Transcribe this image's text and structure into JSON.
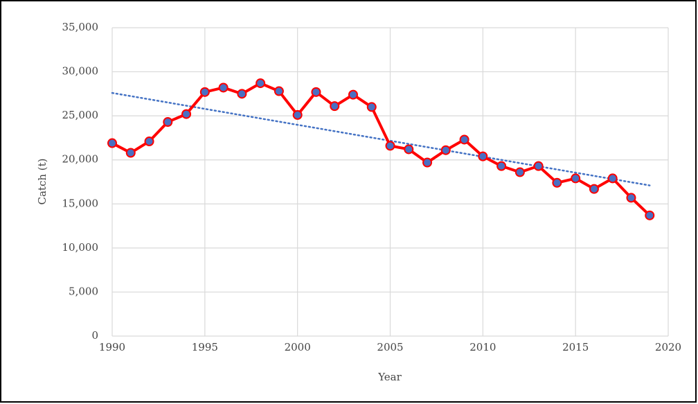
{
  "chart_data": {
    "type": "line",
    "x_label": "Year",
    "y_label": "Catch (t)",
    "x": [
      1990,
      1991,
      1992,
      1993,
      1994,
      1995,
      1996,
      1997,
      1998,
      1999,
      2000,
      2001,
      2002,
      2003,
      2004,
      2005,
      2006,
      2007,
      2008,
      2009,
      2010,
      2011,
      2012,
      2013,
      2014,
      2015,
      2016,
      2017,
      2018,
      2019
    ],
    "series": [
      {
        "color": "#ff0000",
        "marker_color": "#4a6fc2",
        "values": [
          21900,
          20800,
          22100,
          24300,
          25200,
          27700,
          28200,
          27500,
          28700,
          27800,
          25100,
          27700,
          26100,
          27400,
          26000,
          21600,
          21200,
          19700,
          21100,
          22300,
          20400,
          19300,
          18600,
          19300,
          17400,
          17900,
          16700,
          17900,
          15700,
          13700
        ]
      }
    ],
    "trendline": {
      "x": [
        1990,
        2019
      ],
      "values": [
        27600,
        17100
      ],
      "color": "#4472c4"
    },
    "xlim": [
      1990,
      2020
    ],
    "xticks": [
      1990,
      1995,
      2000,
      2005,
      2010,
      2015,
      2020
    ],
    "ylim": [
      0,
      35000
    ],
    "yticks": [
      0,
      {
        "value": 5000,
        "label": "5,000"
      },
      {
        "value": 10000,
        "label": "10,000"
      },
      {
        "value": 15000,
        "label": "15,000"
      },
      {
        "value": 20000,
        "label": "20,000"
      },
      {
        "value": 25000,
        "label": "25,000"
      },
      {
        "value": 30000,
        "label": "30,000"
      },
      {
        "value": 35000,
        "label": "35,000"
      }
    ],
    "grid": true
  }
}
